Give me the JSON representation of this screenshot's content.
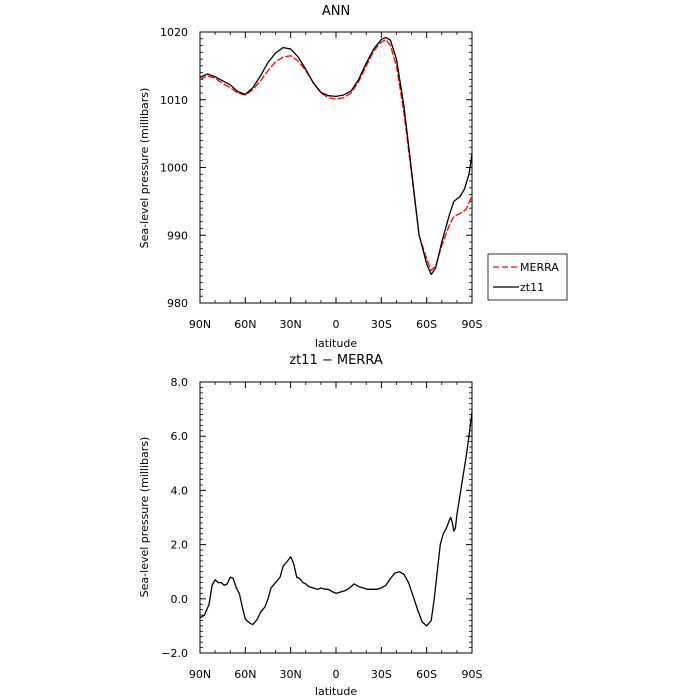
{
  "chart_data": [
    {
      "type": "line",
      "title": "ANN",
      "xlabel": "latitude",
      "ylabel": "Sea-level pressure (millibars)",
      "xlim": [
        90,
        -90
      ],
      "ylim": [
        980,
        1020
      ],
      "xticks": [
        90,
        60,
        30,
        0,
        -30,
        -60,
        -90
      ],
      "xtick_labels": [
        "90N",
        "60N",
        "30N",
        "0",
        "30S",
        "60S",
        "90S"
      ],
      "yticks": [
        980,
        990,
        1000,
        1010,
        1020
      ],
      "ytick_labels": [
        "980",
        "990",
        "1000",
        "1010",
        "1020"
      ],
      "legend_position": "right",
      "series": [
        {
          "name": "MERRA",
          "color": "#ff0000",
          "dash": "dashed",
          "points": [
            [
              90,
              1013.0
            ],
            [
              85,
              1013.5
            ],
            [
              80,
              1013.2
            ],
            [
              75,
              1012.4
            ],
            [
              70,
              1011.8
            ],
            [
              65,
              1011.0
            ],
            [
              60,
              1010.7
            ],
            [
              55,
              1011.5
            ],
            [
              50,
              1012.8
            ],
            [
              45,
              1014.3
            ],
            [
              40,
              1015.6
            ],
            [
              35,
              1016.3
            ],
            [
              30,
              1016.5
            ],
            [
              25,
              1015.7
            ],
            [
              20,
              1014.3
            ],
            [
              15,
              1012.5
            ],
            [
              10,
              1011.0
            ],
            [
              5,
              1010.3
            ],
            [
              0,
              1010.1
            ],
            [
              -5,
              1010.3
            ],
            [
              -10,
              1011.0
            ],
            [
              -15,
              1012.7
            ],
            [
              -20,
              1015.0
            ],
            [
              -25,
              1017.2
            ],
            [
              -30,
              1018.5
            ],
            [
              -33,
              1018.9
            ],
            [
              -36,
              1018.0
            ],
            [
              -40,
              1015.0
            ],
            [
              -45,
              1008.0
            ],
            [
              -50,
              999.0
            ],
            [
              -55,
              990.0
            ],
            [
              -60,
              986.5
            ],
            [
              -63,
              984.8
            ],
            [
              -66,
              985.5
            ],
            [
              -70,
              988.5
            ],
            [
              -75,
              991.5
            ],
            [
              -78,
              992.8
            ],
            [
              -82,
              993.2
            ],
            [
              -86,
              993.8
            ],
            [
              -90,
              995.8
            ]
          ]
        },
        {
          "name": "zt11",
          "color": "#000000",
          "dash": "solid",
          "points": [
            [
              90,
              1013.3
            ],
            [
              85,
              1013.8
            ],
            [
              80,
              1013.4
            ],
            [
              75,
              1012.8
            ],
            [
              70,
              1012.2
            ],
            [
              65,
              1011.2
            ],
            [
              60,
              1010.8
            ],
            [
              55,
              1011.8
            ],
            [
              50,
              1013.5
            ],
            [
              45,
              1015.5
            ],
            [
              40,
              1016.9
            ],
            [
              35,
              1017.7
            ],
            [
              30,
              1017.5
            ],
            [
              25,
              1016.3
            ],
            [
              20,
              1014.5
            ],
            [
              15,
              1012.5
            ],
            [
              10,
              1011.1
            ],
            [
              5,
              1010.6
            ],
            [
              0,
              1010.5
            ],
            [
              -5,
              1010.7
            ],
            [
              -10,
              1011.3
            ],
            [
              -15,
              1013.0
            ],
            [
              -20,
              1015.4
            ],
            [
              -25,
              1017.5
            ],
            [
              -30,
              1018.9
            ],
            [
              -33,
              1019.2
            ],
            [
              -36,
              1018.8
            ],
            [
              -40,
              1016.0
            ],
            [
              -45,
              1009.0
            ],
            [
              -50,
              999.5
            ],
            [
              -55,
              990.0
            ],
            [
              -60,
              985.8
            ],
            [
              -63,
              984.2
            ],
            [
              -66,
              985.2
            ],
            [
              -70,
              989.0
            ],
            [
              -75,
              993.0
            ],
            [
              -78,
              995.0
            ],
            [
              -82,
              995.7
            ],
            [
              -85,
              996.8
            ],
            [
              -88,
              999.0
            ],
            [
              -90,
              1002.0
            ]
          ]
        }
      ]
    },
    {
      "type": "line",
      "title": "zt11 − MERRA",
      "xlabel": "latitude",
      "ylabel": "Sea-level pressure (millibars)",
      "xlim": [
        90,
        -90
      ],
      "ylim": [
        -2.0,
        8.0
      ],
      "xticks": [
        90,
        60,
        30,
        0,
        -30,
        -60,
        -90
      ],
      "xtick_labels": [
        "90N",
        "60N",
        "30N",
        "0",
        "30S",
        "60S",
        "90S"
      ],
      "yticks": [
        -2,
        0,
        2,
        4,
        6,
        8
      ],
      "ytick_labels": [
        "−2.0",
        "0.0",
        "2.0",
        "4.0",
        "6.0",
        "8.0"
      ],
      "series": [
        {
          "color": "#000000",
          "dash": "solid",
          "points": [
            [
              90,
              -0.7
            ],
            [
              87,
              -0.6
            ],
            [
              84,
              -0.2
            ],
            [
              82,
              0.5
            ],
            [
              80,
              0.7
            ],
            [
              78,
              0.6
            ],
            [
              76,
              0.6
            ],
            [
              74,
              0.5
            ],
            [
              72,
              0.55
            ],
            [
              70,
              0.8
            ],
            [
              68,
              0.75
            ],
            [
              66,
              0.4
            ],
            [
              64,
              0.2
            ],
            [
              62,
              -0.3
            ],
            [
              60,
              -0.75
            ],
            [
              57,
              -0.9
            ],
            [
              55,
              -0.95
            ],
            [
              52,
              -0.75
            ],
            [
              50,
              -0.5
            ],
            [
              47,
              -0.3
            ],
            [
              45,
              0.0
            ],
            [
              43,
              0.4
            ],
            [
              40,
              0.6
            ],
            [
              37,
              0.8
            ],
            [
              35,
              1.2
            ],
            [
              32,
              1.4
            ],
            [
              30,
              1.55
            ],
            [
              28,
              1.3
            ],
            [
              26,
              0.8
            ],
            [
              24,
              0.75
            ],
            [
              22,
              0.6
            ],
            [
              20,
              0.55
            ],
            [
              18,
              0.45
            ],
            [
              15,
              0.4
            ],
            [
              12,
              0.35
            ],
            [
              10,
              0.4
            ],
            [
              7,
              0.35
            ],
            [
              5,
              0.35
            ],
            [
              2,
              0.25
            ],
            [
              0,
              0.2
            ],
            [
              -3,
              0.25
            ],
            [
              -6,
              0.3
            ],
            [
              -9,
              0.4
            ],
            [
              -12,
              0.55
            ],
            [
              -15,
              0.45
            ],
            [
              -18,
              0.4
            ],
            [
              -21,
              0.35
            ],
            [
              -24,
              0.35
            ],
            [
              -27,
              0.35
            ],
            [
              -30,
              0.4
            ],
            [
              -33,
              0.5
            ],
            [
              -36,
              0.75
            ],
            [
              -39,
              0.95
            ],
            [
              -42,
              1.0
            ],
            [
              -45,
              0.9
            ],
            [
              -48,
              0.6
            ],
            [
              -51,
              0.1
            ],
            [
              -54,
              -0.4
            ],
            [
              -57,
              -0.85
            ],
            [
              -60,
              -1.0
            ],
            [
              -63,
              -0.8
            ],
            [
              -65,
              0.0
            ],
            [
              -67,
              1.0
            ],
            [
              -69,
              2.0
            ],
            [
              -71,
              2.4
            ],
            [
              -73,
              2.6
            ],
            [
              -75,
              2.9
            ],
            [
              -76,
              3.0
            ],
            [
              -77,
              2.8
            ],
            [
              -78,
              2.5
            ],
            [
              -79,
              2.6
            ],
            [
              -80,
              3.1
            ],
            [
              -82,
              3.8
            ],
            [
              -84,
              4.5
            ],
            [
              -86,
              5.2
            ],
            [
              -88,
              6.0
            ],
            [
              -90,
              6.9
            ]
          ]
        }
      ]
    }
  ],
  "colors": {
    "axis": "#000000",
    "merra": "#ff0000",
    "zt11": "#000000"
  }
}
